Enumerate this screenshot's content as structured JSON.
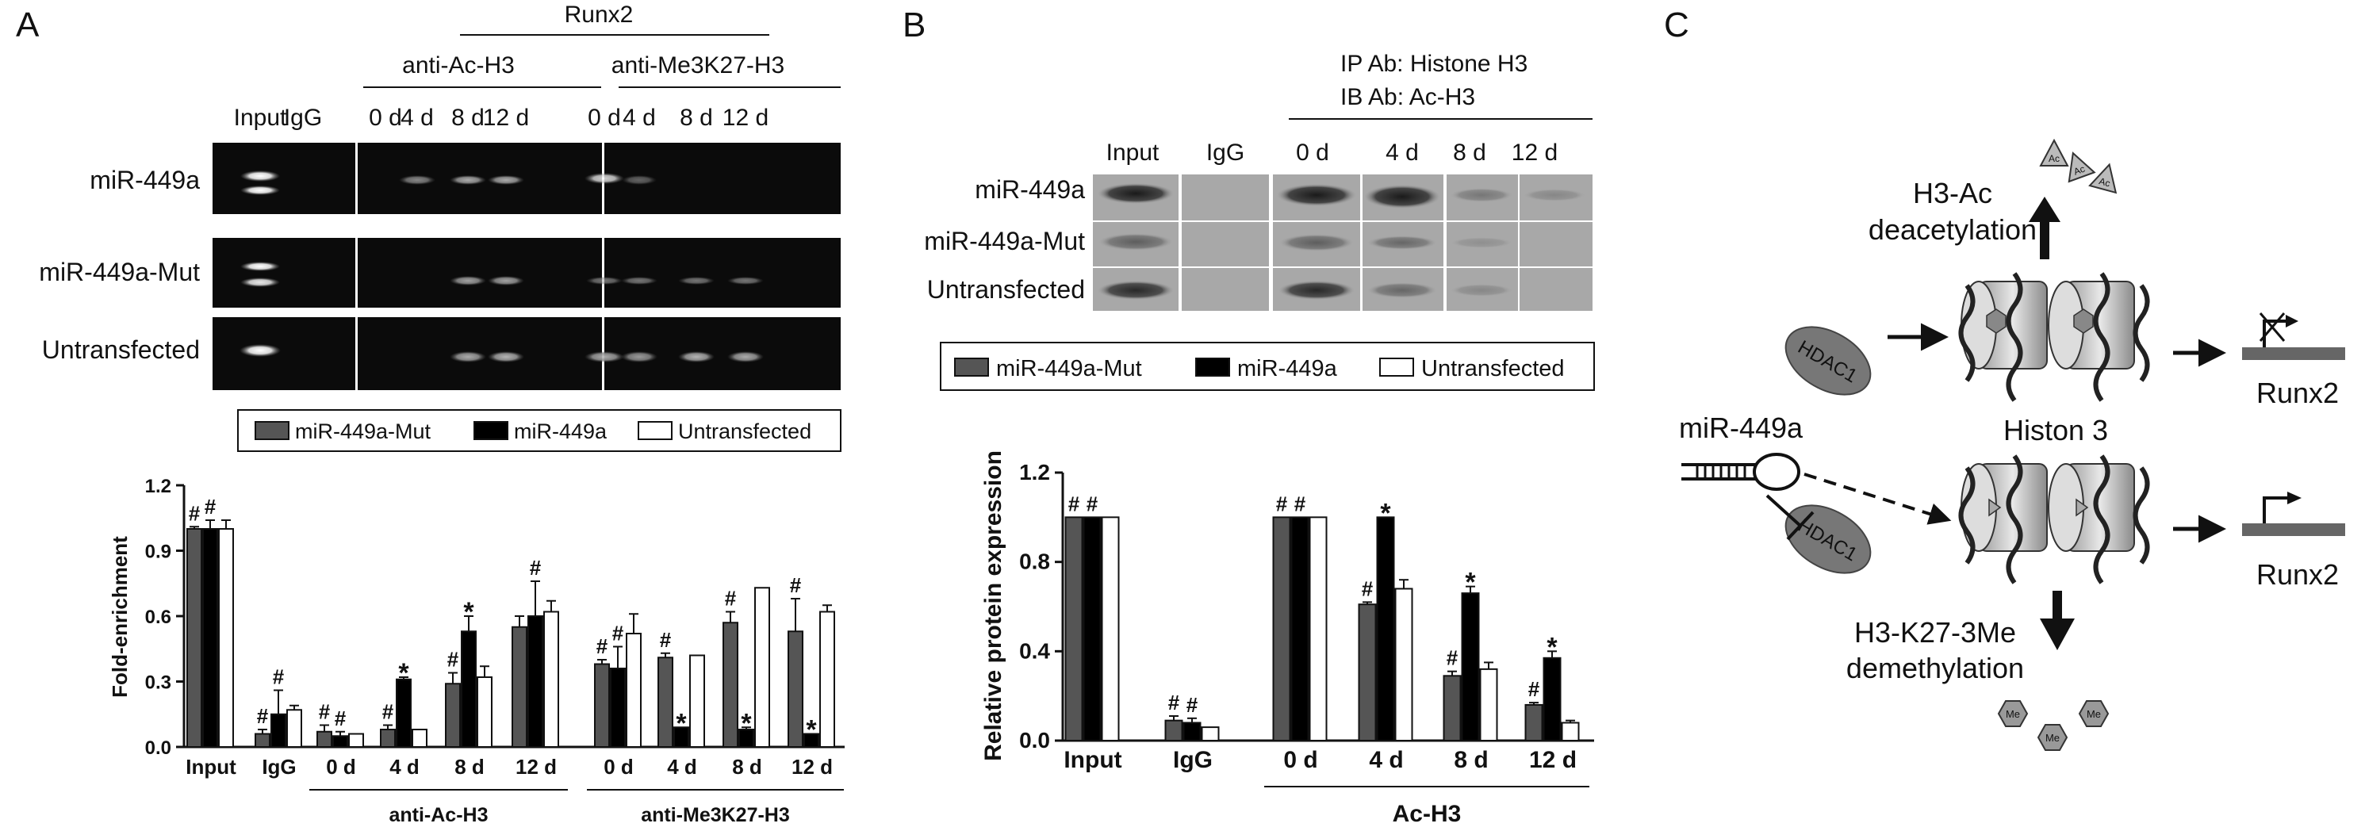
{
  "panels": {
    "A": {
      "letter": "A",
      "gel": {
        "top_header": "Runx2",
        "group_headers": [
          "anti-Ac-H3",
          "anti-Me3K27-H3"
        ],
        "lane_labels": [
          "Input",
          "IgG",
          "0 d",
          "4 d",
          "8 d",
          "12 d",
          "0 d",
          "4 d",
          "8 d",
          "12 d"
        ],
        "row_labels": [
          "miR-449a",
          "miR-449a-Mut",
          "Untransfected"
        ]
      },
      "legend": [
        "miR-449a-Mut",
        "miR-449a",
        "Untransfected"
      ]
    },
    "B": {
      "letter": "B",
      "blot": {
        "ip_line": "IP Ab: Histone H3",
        "ib_line": "IB Ab: Ac-H3",
        "lane_labels": [
          "Input",
          "IgG",
          "0 d",
          "4 d",
          "8 d",
          "12 d"
        ],
        "row_labels": [
          "miR-449a",
          "miR-449a-Mut",
          "Untransfected"
        ]
      },
      "legend": [
        "miR-449a-Mut",
        "miR-449a",
        "Untransfected"
      ]
    },
    "C": {
      "letter": "C",
      "labels": {
        "h3ac_line1": "H3-Ac",
        "h3ac_line2": "deacetylation",
        "hdac_top": "HDAC1",
        "hdac_bottom": "HDAC1",
        "mirna": "miR-449a",
        "histon": "Histon 3",
        "runx_top": "Runx2",
        "runx_bottom": "Runx2",
        "k27_line1": "H3-K27-3Me",
        "k27_line2": "demethylation",
        "ac": "Ac",
        "me": "Me"
      }
    }
  },
  "colors": {
    "mut": "#555555",
    "mir": "#000000",
    "untr": "#ffffff"
  },
  "chart_data": [
    {
      "type": "bar",
      "panel": "A",
      "ylabel": "Fold-enrichment",
      "ylim": [
        0,
        1.2
      ],
      "yticks": [
        0.0,
        0.3,
        0.6,
        0.9,
        1.2
      ],
      "ytick_labels": [
        "0.0",
        "0.3",
        "0.6",
        "0.9",
        "1.2"
      ],
      "categories": [
        "Input",
        "IgG",
        "0 d",
        "4 d",
        "8 d",
        "12 d",
        "0 d",
        "4 d",
        "8 d",
        "12 d"
      ],
      "groups": [
        {
          "label": "anti-Ac-H3",
          "from": 2,
          "to": 5
        },
        {
          "label": "anti-Me3K27-H3",
          "from": 6,
          "to": 9
        }
      ],
      "series": [
        {
          "name": "miR-449a-Mut",
          "values": [
            1.0,
            0.06,
            0.07,
            0.08,
            0.29,
            0.55,
            0.38,
            0.41,
            0.57,
            0.53
          ],
          "errors": [
            0.01,
            0.02,
            0.03,
            0.02,
            0.05,
            0.05,
            0.02,
            0.02,
            0.05,
            0.15
          ]
        },
        {
          "name": "miR-449a",
          "values": [
            1.0,
            0.15,
            0.05,
            0.31,
            0.53,
            0.6,
            0.36,
            0.09,
            0.08,
            0.06
          ],
          "errors": [
            0.04,
            0.11,
            0.02,
            0.01,
            0.07,
            0.16,
            0.1,
            0.0,
            0.01,
            0.0
          ]
        },
        {
          "name": "Untransfected",
          "values": [
            1.0,
            0.17,
            0.06,
            0.08,
            0.32,
            0.62,
            0.52,
            0.42,
            0.73,
            0.62
          ],
          "errors": [
            0.04,
            0.02,
            0.0,
            0.0,
            0.05,
            0.05,
            0.09,
            0.0,
            0.0,
            0.03
          ]
        }
      ],
      "annotations": [
        {
          "text": "#",
          "category": 0,
          "series": 0
        },
        {
          "text": "#",
          "category": 0,
          "series": 1
        },
        {
          "text": "#",
          "category": 1,
          "series": 0
        },
        {
          "text": "#",
          "category": 1,
          "series": 1
        },
        {
          "text": "#",
          "category": 2,
          "series": 0
        },
        {
          "text": "#",
          "category": 2,
          "series": 1
        },
        {
          "text": "#",
          "category": 3,
          "series": 0
        },
        {
          "text": "*",
          "category": 3,
          "series": 1
        },
        {
          "text": "#",
          "category": 4,
          "series": 0
        },
        {
          "text": "*",
          "category": 4,
          "series": 1
        },
        {
          "text": "#",
          "category": 5,
          "series": 1
        },
        {
          "text": "#",
          "category": 6,
          "series": 0
        },
        {
          "text": "#",
          "category": 6,
          "series": 1
        },
        {
          "text": "#",
          "category": 7,
          "series": 0
        },
        {
          "text": "*",
          "category": 7,
          "series": 1
        },
        {
          "text": "#",
          "category": 8,
          "series": 0
        },
        {
          "text": "*",
          "category": 8,
          "series": 1
        },
        {
          "text": "#",
          "category": 9,
          "series": 0
        },
        {
          "text": "*",
          "category": 9,
          "series": 1
        }
      ]
    },
    {
      "type": "bar",
      "panel": "B",
      "ylabel": "Relative protein expression",
      "ylim": [
        0,
        1.2
      ],
      "yticks": [
        0.0,
        0.4,
        0.8,
        1.2
      ],
      "ytick_labels": [
        "0.0",
        "0.4",
        "0.8",
        "1.2"
      ],
      "categories": [
        "Input",
        "IgG",
        "0 d",
        "4 d",
        "8 d",
        "12 d"
      ],
      "groups": [
        {
          "label": "Ac-H3",
          "from": 2,
          "to": 5
        }
      ],
      "series": [
        {
          "name": "miR-449a-Mut",
          "values": [
            1.0,
            0.09,
            1.0,
            0.61,
            0.29,
            0.16
          ],
          "errors": [
            0.0,
            0.02,
            0.0,
            0.01,
            0.02,
            0.01
          ]
        },
        {
          "name": "miR-449a",
          "values": [
            1.0,
            0.08,
            1.0,
            1.0,
            0.66,
            0.37
          ],
          "errors": [
            0.0,
            0.02,
            0.0,
            0.0,
            0.03,
            0.03
          ]
        },
        {
          "name": "Untransfected",
          "values": [
            1.0,
            0.06,
            1.0,
            0.68,
            0.32,
            0.08
          ],
          "errors": [
            0.0,
            0.0,
            0.0,
            0.04,
            0.03,
            0.01
          ]
        }
      ],
      "annotations": [
        {
          "text": "#",
          "category": 0,
          "series": 0
        },
        {
          "text": "#",
          "category": 0,
          "series": 1
        },
        {
          "text": "#",
          "category": 1,
          "series": 0
        },
        {
          "text": "#",
          "category": 1,
          "series": 1
        },
        {
          "text": "#",
          "category": 2,
          "series": 0
        },
        {
          "text": "#",
          "category": 2,
          "series": 1
        },
        {
          "text": "*",
          "category": 3,
          "series": 1
        },
        {
          "text": "#",
          "category": 3,
          "series": 0
        },
        {
          "text": "#",
          "category": 4,
          "series": 0
        },
        {
          "text": "*",
          "category": 4,
          "series": 1
        },
        {
          "text": "#",
          "category": 5,
          "series": 0
        },
        {
          "text": "*",
          "category": 5,
          "series": 1
        }
      ]
    }
  ]
}
